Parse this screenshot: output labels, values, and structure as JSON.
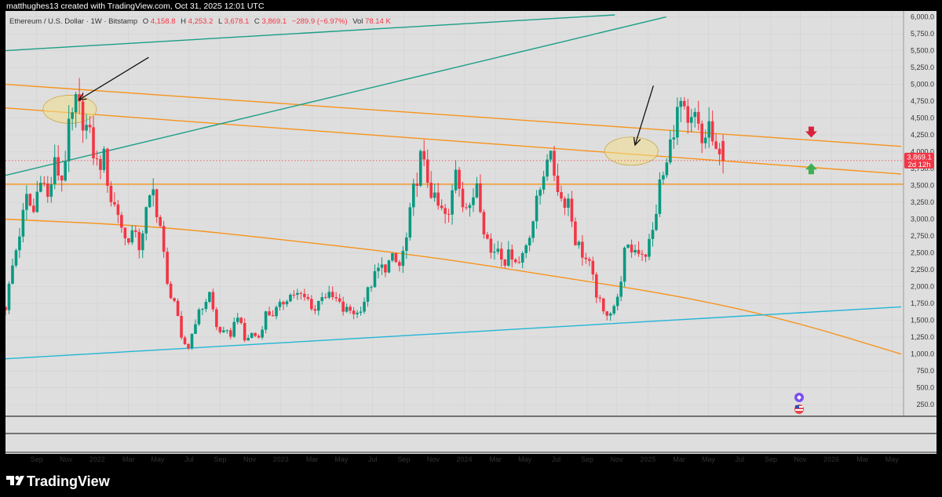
{
  "header": {
    "attribution": "matthughes13 created with TradingView.com, Oct 31, 2025 12:01 UTC"
  },
  "legend": {
    "symbol": "Ethereum / U.S. Dollar · 1W · Bitstamp",
    "open_label": "O",
    "open": "4,158.8",
    "high_label": "H",
    "high": "4,253.2",
    "low_label": "L",
    "low": "3,678.1",
    "close_label": "C",
    "close": "3,869.1",
    "change": "−289.9 (−6.97%)",
    "vol_label": "Vol",
    "vol": "78.14 K"
  },
  "price_tag": {
    "price": "3,869.1",
    "countdown": "2d 12h"
  },
  "brand": {
    "name": "TradingView"
  },
  "colors": {
    "background": "#dedede",
    "frame": "#000000",
    "up": "#089981",
    "down": "#f23645",
    "orange": "#f7931a",
    "teal": "#1a9e86",
    "cyan": "#22b5d6",
    "ellipse": "#f2df8c"
  },
  "chart_data": {
    "type": "candlestick",
    "symbol": "ETHUSD",
    "interval": "1W",
    "exchange": "Bitstamp",
    "ylim": [
      130,
      6030
    ],
    "y_ticks": [
      "6,000.0",
      "5,750.0",
      "5,500.0",
      "5,250.0",
      "5,000.0",
      "4,750.0",
      "4,500.0",
      "4,250.0",
      "4,000.0",
      "3,750.0",
      "3,500.0",
      "3,250.0",
      "3,000.0",
      "2,750.0",
      "2,500.0",
      "2,250.0",
      "2,000.0",
      "1,750.0",
      "1,500.0",
      "1,250.0",
      "1,000.0",
      "750.0",
      "500.0",
      "250.0"
    ],
    "x_labels": [
      {
        "label": "Sep",
        "t": 2021.67,
        "year": false
      },
      {
        "label": "Nov",
        "t": 2021.83,
        "year": false
      },
      {
        "label": "2022",
        "t": 2022.0,
        "year": true
      },
      {
        "label": "Mar",
        "t": 2022.17,
        "year": false
      },
      {
        "label": "May",
        "t": 2022.33,
        "year": false
      },
      {
        "label": "Jul",
        "t": 2022.5,
        "year": false
      },
      {
        "label": "Sep",
        "t": 2022.67,
        "year": false
      },
      {
        "label": "Nov",
        "t": 2022.83,
        "year": false
      },
      {
        "label": "2023",
        "t": 2023.0,
        "year": true
      },
      {
        "label": "Mar",
        "t": 2023.17,
        "year": false
      },
      {
        "label": "May",
        "t": 2023.33,
        "year": false
      },
      {
        "label": "Jul",
        "t": 2023.5,
        "year": false
      },
      {
        "label": "Sep",
        "t": 2023.67,
        "year": false
      },
      {
        "label": "Nov",
        "t": 2023.83,
        "year": false
      },
      {
        "label": "2024",
        "t": 2024.0,
        "year": true
      },
      {
        "label": "Mar",
        "t": 2024.17,
        "year": false
      },
      {
        "label": "May",
        "t": 2024.33,
        "year": false
      },
      {
        "label": "Jul",
        "t": 2024.5,
        "year": false
      },
      {
        "label": "Sep",
        "t": 2024.67,
        "year": false
      },
      {
        "label": "Nov",
        "t": 2024.83,
        "year": false
      },
      {
        "label": "2025",
        "t": 2025.0,
        "year": true
      },
      {
        "label": "Mar",
        "t": 2025.17,
        "year": false
      },
      {
        "label": "May",
        "t": 2025.33,
        "year": false
      },
      {
        "label": "Jul",
        "t": 2025.5,
        "year": false
      },
      {
        "label": "Sep",
        "t": 2025.67,
        "year": false
      },
      {
        "label": "Nov",
        "t": 2025.83,
        "year": false
      },
      {
        "label": "2026",
        "t": 2026.0,
        "year": true
      },
      {
        "label": "Mar",
        "t": 2026.17,
        "year": false
      },
      {
        "label": "May",
        "t": 2026.33,
        "year": false
      }
    ],
    "start_t": 2021.5,
    "key_points": [
      [
        0,
        1700
      ],
      [
        2,
        2300
      ],
      [
        4,
        2800
      ],
      [
        6,
        3300
      ],
      [
        8,
        3100
      ],
      [
        10,
        3700
      ],
      [
        12,
        3300
      ],
      [
        14,
        3800
      ],
      [
        16,
        3600
      ],
      [
        18,
        4300
      ],
      [
        20,
        4700
      ],
      [
        22,
        4500
      ],
      [
        24,
        4200
      ],
      [
        26,
        3800
      ],
      [
        28,
        3900
      ],
      [
        30,
        3300
      ],
      [
        32,
        3100
      ],
      [
        34,
        2700
      ],
      [
        36,
        2800
      ],
      [
        38,
        2600
      ],
      [
        40,
        3100
      ],
      [
        42,
        3400
      ],
      [
        44,
        2900
      ],
      [
        46,
        2000
      ],
      [
        48,
        1800
      ],
      [
        50,
        1200
      ],
      [
        52,
        1100
      ],
      [
        54,
        1500
      ],
      [
        56,
        1700
      ],
      [
        58,
        1900
      ],
      [
        60,
        1400
      ],
      [
        62,
        1300
      ],
      [
        64,
        1300
      ],
      [
        66,
        1600
      ],
      [
        68,
        1200
      ],
      [
        70,
        1300
      ],
      [
        72,
        1250
      ],
      [
        74,
        1600
      ],
      [
        76,
        1600
      ],
      [
        78,
        1700
      ],
      [
        80,
        1850
      ],
      [
        82,
        1900
      ],
      [
        84,
        1850
      ],
      [
        86,
        1800
      ],
      [
        88,
        1650
      ],
      [
        90,
        1900
      ],
      [
        92,
        1850
      ],
      [
        94,
        1800
      ],
      [
        96,
        1650
      ],
      [
        98,
        1650
      ],
      [
        100,
        1600
      ],
      [
        102,
        1800
      ],
      [
        104,
        2050
      ],
      [
        106,
        2250
      ],
      [
        108,
        2300
      ],
      [
        110,
        2400
      ],
      [
        112,
        2300
      ],
      [
        114,
        2700
      ],
      [
        116,
        3400
      ],
      [
        118,
        3900
      ],
      [
        120,
        3600
      ],
      [
        122,
        3250
      ],
      [
        124,
        3100
      ],
      [
        126,
        3000
      ],
      [
        128,
        3800
      ],
      [
        130,
        3300
      ],
      [
        132,
        3100
      ],
      [
        134,
        3600
      ],
      [
        136,
        2900
      ],
      [
        138,
        2500
      ],
      [
        140,
        2600
      ],
      [
        142,
        2400
      ],
      [
        144,
        2500
      ],
      [
        146,
        2350
      ],
      [
        148,
        2650
      ],
      [
        150,
        3000
      ],
      [
        152,
        3450
      ],
      [
        154,
        4000
      ],
      [
        156,
        3700
      ],
      [
        158,
        3300
      ],
      [
        160,
        3300
      ],
      [
        162,
        2700
      ],
      [
        164,
        2500
      ],
      [
        166,
        2300
      ],
      [
        168,
        1900
      ],
      [
        170,
        1600
      ],
      [
        172,
        1650
      ],
      [
        174,
        1800
      ],
      [
        176,
        2500
      ],
      [
        178,
        2550
      ],
      [
        180,
        2550
      ],
      [
        182,
        2500
      ],
      [
        184,
        2800
      ],
      [
        186,
        3500
      ],
      [
        188,
        3800
      ],
      [
        190,
        4400
      ],
      [
        192,
        4700
      ],
      [
        194,
        4300
      ],
      [
        196,
        4500
      ],
      [
        198,
        4100
      ],
      [
        200,
        4400
      ],
      [
        202,
        3900
      ],
      [
        204,
        3869
      ]
    ],
    "last_candle": {
      "open": 4158.8,
      "high": 4253.2,
      "low": 3678.1,
      "close": 3869.1
    },
    "drawings": [
      {
        "kind": "trendline",
        "color": "orange",
        "t1": 2021.5,
        "p1": 5000,
        "t2": 2026.38,
        "p2": 4080
      },
      {
        "kind": "trendline",
        "color": "orange",
        "t1": 2021.5,
        "p1": 4650,
        "t2": 2026.38,
        "p2": 3670
      },
      {
        "kind": "horizontal",
        "color": "orange",
        "price": 3520
      },
      {
        "kind": "curve",
        "color": "orange",
        "points": [
          [
            2021.5,
            3000
          ],
          [
            2022.3,
            2900
          ],
          [
            2023.0,
            2700
          ],
          [
            2023.8,
            2450
          ],
          [
            2024.5,
            2150
          ],
          [
            2025.2,
            1850
          ],
          [
            2025.8,
            1480
          ],
          [
            2026.38,
            1000
          ]
        ]
      },
      {
        "kind": "trendline",
        "color": "teal",
        "t1": 2021.5,
        "p1": 3650,
        "t2": 2025.1,
        "p2": 6000
      },
      {
        "kind": "trendline",
        "color": "teal",
        "t1": 2021.5,
        "p1": 5500,
        "t2": 2024.82,
        "p2": 6030
      },
      {
        "kind": "trendline",
        "color": "cyan",
        "t1": 2021.5,
        "p1": 930,
        "t2": 2026.38,
        "p2": 1700
      },
      {
        "kind": "ellipse",
        "t": 2021.85,
        "price": 4630
      },
      {
        "kind": "ellipse",
        "t": 2024.91,
        "price": 4010
      },
      {
        "kind": "arrow",
        "t1": 2022.28,
        "p1": 5400,
        "t2": 2021.9,
        "p2": 4770
      },
      {
        "kind": "arrow",
        "t1": 2025.03,
        "p1": 4980,
        "t2": 2024.93,
        "p2": 4100
      }
    ],
    "signals": [
      {
        "kind": "down-arrow",
        "t": 2025.89,
        "price": 4280
      },
      {
        "kind": "up-arrow",
        "t": 2025.89,
        "price": 3760
      }
    ]
  }
}
